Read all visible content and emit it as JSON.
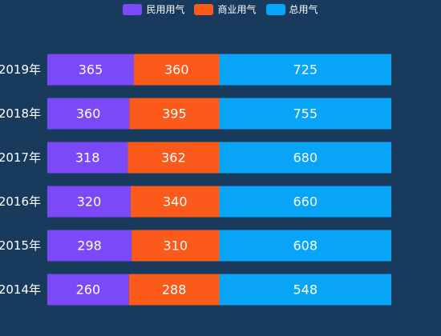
{
  "chart_data": {
    "type": "bar",
    "orientation": "horizontal",
    "stacked": true,
    "categories": [
      "2014年",
      "2015年",
      "2016年",
      "2017年",
      "2018年",
      "2019年"
    ],
    "series": [
      {
        "name": "民用用气",
        "values": [
          260,
          298,
          320,
          318,
          360,
          365
        ],
        "color": "#7b49f7"
      },
      {
        "name": "商业用气",
        "values": [
          288,
          310,
          340,
          362,
          395,
          360
        ],
        "color": "#fb5a1b"
      },
      {
        "name": "总用气",
        "values": [
          548,
          608,
          660,
          680,
          755,
          725
        ],
        "color": "#07a4f8"
      }
    ],
    "legend_position": "top-center",
    "grid": false,
    "bars_normalized": true
  }
}
